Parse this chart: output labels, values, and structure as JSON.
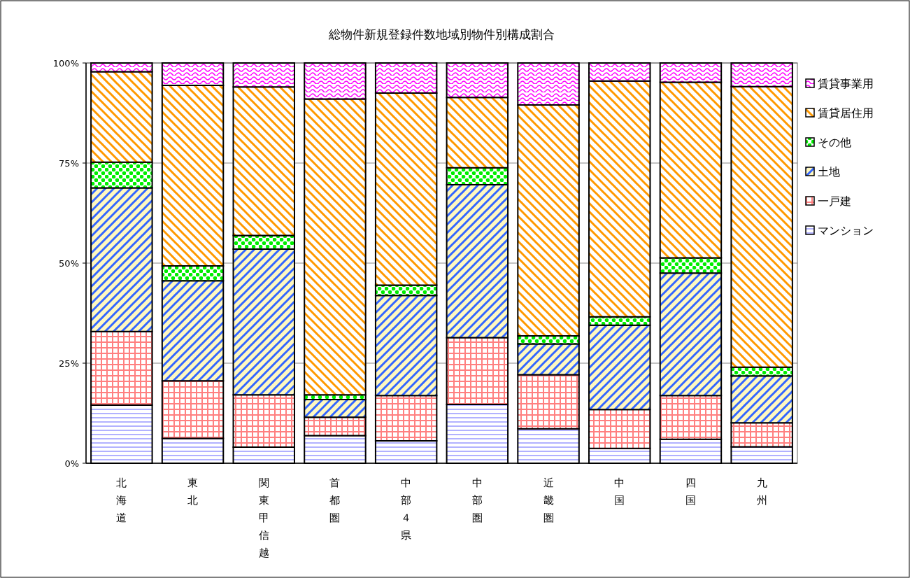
{
  "chart_data": {
    "type": "bar",
    "title": "総物件新規登録件数地域別物件別構成割合",
    "stacked": true,
    "categories": [
      "北海道",
      "東北",
      "関東甲信越",
      "首都圏",
      "中部４県",
      "中部圏",
      "近畿圏",
      "中国",
      "四国",
      "九州"
    ],
    "series": [
      {
        "name": "マンション",
        "color": "#9999ff",
        "values": [
          14.5,
          6.2,
          4.0,
          6.9,
          5.6,
          14.7,
          8.6,
          3.7,
          6.0,
          4.1
        ]
      },
      {
        "name": "一戸建",
        "color": "#ff8080",
        "values": [
          18.4,
          14.4,
          13.1,
          4.6,
          11.3,
          16.7,
          13.5,
          9.7,
          10.9,
          6.0
        ]
      },
      {
        "name": "土地",
        "color": "#3366ff",
        "values": [
          35.9,
          25.0,
          36.4,
          4.4,
          25.0,
          38.2,
          7.7,
          21.1,
          30.6,
          11.7
        ]
      },
      {
        "name": "その他",
        "color": "#00ee00",
        "values": [
          6.4,
          3.7,
          3.4,
          1.2,
          2.6,
          4.2,
          2.0,
          2.1,
          3.8,
          2.2
        ]
      },
      {
        "name": "賃貸居住用",
        "color": "#ff9900",
        "values": [
          22.6,
          45.1,
          37.1,
          73.9,
          48.0,
          17.6,
          57.7,
          58.9,
          43.9,
          70.1
        ]
      },
      {
        "name": "賃貸事業用",
        "color": "#ff00ff",
        "values": [
          2.2,
          5.6,
          6.0,
          9.0,
          7.5,
          8.6,
          10.5,
          4.5,
          4.8,
          5.9
        ]
      }
    ],
    "ylim": [
      0,
      100
    ],
    "yticks": [
      {
        "value": 0,
        "label": "0%"
      },
      {
        "value": 25,
        "label": "25%"
      },
      {
        "value": 50,
        "label": "50%"
      },
      {
        "value": 75,
        "label": "75%"
      },
      {
        "value": 100,
        "label": "100%"
      }
    ],
    "grid": "y",
    "legend": "right"
  }
}
